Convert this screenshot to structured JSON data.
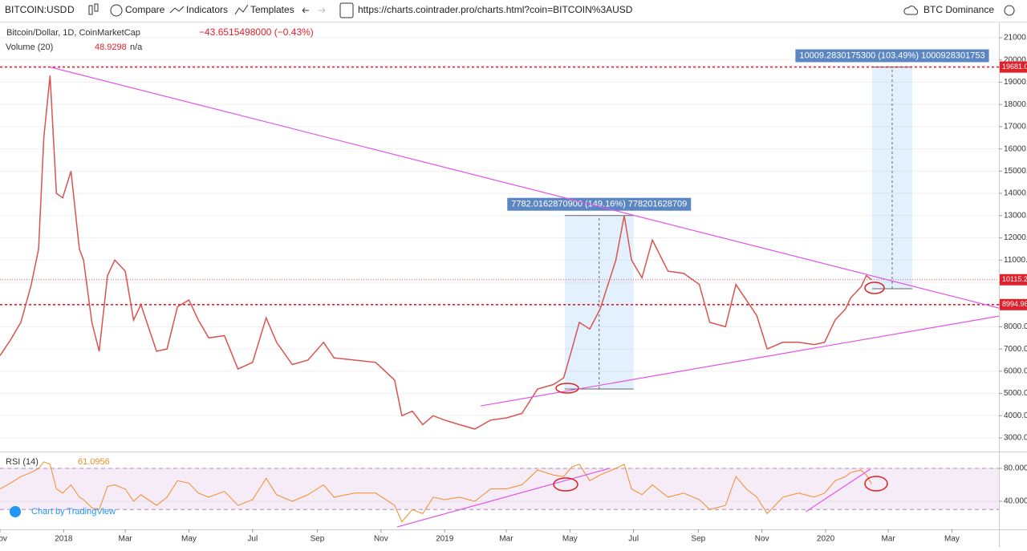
{
  "toolbar": {
    "symbol": "BITCOIN:USD",
    "interval": "D",
    "compare": "Compare",
    "indicators": "Indicators",
    "templates": "Templates",
    "url": "https://charts.cointrader.pro/charts.html?coin=BITCOIN%3AUSD",
    "dominance": "BTC Dominance"
  },
  "chart_data": [
    {
      "type": "line",
      "title": "Bitcoin/Dollar, 1D, CoinMarketCap",
      "change": "−43.6515498000 (−0.43%)",
      "volume_label": "Volume (20)",
      "volume_value": "48.9298",
      "volume_na": "n/a",
      "x": [
        0,
        10,
        20,
        30,
        37,
        42,
        48,
        54,
        60,
        68,
        76,
        80,
        88,
        95,
        103,
        110,
        120,
        128,
        135,
        150,
        160,
        170,
        181,
        190,
        200,
        215,
        228,
        242,
        255,
        265,
        280,
        295,
        310,
        320,
        340,
        360,
        378,
        385,
        395,
        405,
        415,
        426,
        440,
        455,
        470,
        485,
        500,
        515,
        530,
        540,
        548,
        555,
        565,
        575,
        590,
        598,
        605,
        615,
        625,
        640,
        655,
        670,
        680,
        695,
        705,
        715,
        725,
        735,
        750,
        765,
        780,
        790,
        800,
        810,
        815,
        825,
        830,
        835
      ],
      "series": [
        {
          "name": "Bitcoin/Dollar, 1D, CoinMarketCap",
          "color": "#d9534f",
          "values": [
            6700,
            7400,
            8200,
            9900,
            11500,
            16500,
            19300,
            14000,
            13800,
            15000,
            11500,
            11000,
            8200,
            6900,
            10300,
            11000,
            10500,
            8300,
            9000,
            6900,
            7000,
            8900,
            9200,
            8300,
            7500,
            7600,
            6100,
            6400,
            8400,
            7300,
            6300,
            6500,
            7300,
            6600,
            6500,
            6400,
            5600,
            4000,
            4200,
            3600,
            4000,
            3800,
            3600,
            3400,
            3800,
            3900,
            4100,
            5200,
            5400,
            5700,
            7000,
            8200,
            7900,
            8800,
            11000,
            13000,
            11000,
            10200,
            11900,
            10500,
            10400,
            9900,
            8200,
            8000,
            9900,
            9200,
            8500,
            7000,
            7300,
            7300,
            7200,
            7300,
            8300,
            8800,
            9300,
            9800,
            10300,
            10115
          ]
        }
      ],
      "xlim": [
        0,
        957
      ],
      "ylim": [
        2387,
        21687
      ],
      "yticks": [
        {
          "value": 3000,
          "label": "3000.0000"
        },
        {
          "value": 4000,
          "label": "4000.0000"
        },
        {
          "value": 5000,
          "label": "5000.0000"
        },
        {
          "value": 6000,
          "label": "6000.0000"
        },
        {
          "value": 7000,
          "label": "7000.0000"
        },
        {
          "value": 8000,
          "label": "8000.0000"
        },
        {
          "value": 9000,
          "label": "9000.0000"
        },
        {
          "value": 10000,
          "label": "10000.0000"
        },
        {
          "value": 11000,
          "label": "11000.0000"
        },
        {
          "value": 12000,
          "label": "12000.0000"
        },
        {
          "value": 13000,
          "label": "13000.0000"
        },
        {
          "value": 14000,
          "label": "14000.0000"
        },
        {
          "value": 15000,
          "label": "15000.0000"
        },
        {
          "value": 16000,
          "label": "16000.0000"
        },
        {
          "value": 17000,
          "label": "17000.0000"
        },
        {
          "value": 18000,
          "label": "18000.0000"
        },
        {
          "value": 19000,
          "label": "19000.0000"
        },
        {
          "value": 20000,
          "label": "20000.0000"
        },
        {
          "value": 21000,
          "label": "21000.0000"
        }
      ],
      "levels": [
        {
          "value": 19681,
          "label": "19681.0000",
          "color": "#e0202a"
        },
        {
          "value": 10115.2,
          "label": "10115.2000",
          "color": "#e0202a"
        },
        {
          "value": 8994.96,
          "label": "8994.9600",
          "color": "#e0202a"
        }
      ],
      "trendlines": [
        [
          [
            48,
            19681
          ],
          [
            957,
            8840
          ]
        ],
        [
          [
            460.6,
            4440
          ],
          [
            957,
            8480
          ]
        ]
      ],
      "measures": [
        {
          "x": [
            541,
            607
          ],
          "y": [
            5200,
            13000
          ],
          "label": "7782.0162870900 (149.16%) 778201628709"
        },
        {
          "x": [
            835.5,
            874
          ],
          "y": [
            9710,
            19681
          ],
          "label": "10009.2830175300 (103.49%) 1000928301753"
        }
      ]
    },
    {
      "type": "line",
      "title": "RSI (14)",
      "value": "61.0956",
      "brand": "Chart by TradingView",
      "x": [
        0,
        10,
        20,
        30,
        37,
        42,
        48,
        54,
        60,
        68,
        76,
        80,
        88,
        95,
        103,
        110,
        120,
        128,
        135,
        150,
        160,
        170,
        181,
        190,
        200,
        215,
        228,
        242,
        255,
        265,
        280,
        295,
        310,
        320,
        340,
        360,
        378,
        385,
        395,
        405,
        415,
        426,
        440,
        455,
        470,
        485,
        500,
        515,
        530,
        540,
        548,
        555,
        565,
        575,
        590,
        598,
        605,
        615,
        625,
        640,
        655,
        670,
        680,
        695,
        705,
        715,
        725,
        735,
        750,
        765,
        780,
        790,
        800,
        810,
        815,
        825,
        830,
        835
      ],
      "series": [
        {
          "name": "RSI (14)",
          "color": "#f28c28",
          "values": [
            55,
            62,
            70,
            75,
            80,
            88,
            85,
            55,
            50,
            60,
            45,
            42,
            32,
            30,
            58,
            60,
            55,
            40,
            48,
            35,
            45,
            65,
            62,
            50,
            45,
            52,
            35,
            42,
            68,
            48,
            40,
            48,
            60,
            45,
            50,
            50,
            35,
            15,
            30,
            25,
            45,
            42,
            45,
            40,
            55,
            55,
            60,
            78,
            72,
            70,
            82,
            85,
            65,
            72,
            80,
            85,
            55,
            48,
            60,
            45,
            50,
            42,
            30,
            35,
            70,
            55,
            45,
            25,
            45,
            50,
            45,
            50,
            65,
            70,
            75,
            78,
            72,
            61.0956
          ]
        }
      ],
      "band": [
        30,
        80
      ],
      "xlim": [
        0,
        957
      ],
      "ylim": [
        5.9,
        98.5
      ],
      "yticks": [
        {
          "value": 40,
          "label": "40.0000"
        },
        {
          "value": 80,
          "label": "80.0000"
        }
      ],
      "trendlines": [
        [
          [
            380.4,
            8.8
          ],
          [
            584,
            80
          ]
        ],
        [
          [
            772,
            27.3
          ],
          [
            833.7,
            79
          ]
        ]
      ],
      "xticks": [
        {
          "value": 0,
          "label": "Nov"
        },
        {
          "value": 61,
          "label": "2018"
        },
        {
          "value": 120,
          "label": "Mar"
        },
        {
          "value": 181,
          "label": "May"
        },
        {
          "value": 242,
          "label": "Jul"
        },
        {
          "value": 304,
          "label": "Sep"
        },
        {
          "value": 365,
          "label": "Nov"
        },
        {
          "value": 426,
          "label": "2019"
        },
        {
          "value": 485,
          "label": "Mar"
        },
        {
          "value": 546,
          "label": "May"
        },
        {
          "value": 607,
          "label": "Jul"
        },
        {
          "value": 669,
          "label": "Sep"
        },
        {
          "value": 730,
          "label": "Nov"
        },
        {
          "value": 791,
          "label": "2020"
        },
        {
          "value": 851,
          "label": "Mar"
        },
        {
          "value": 912,
          "label": "May"
        }
      ]
    }
  ]
}
